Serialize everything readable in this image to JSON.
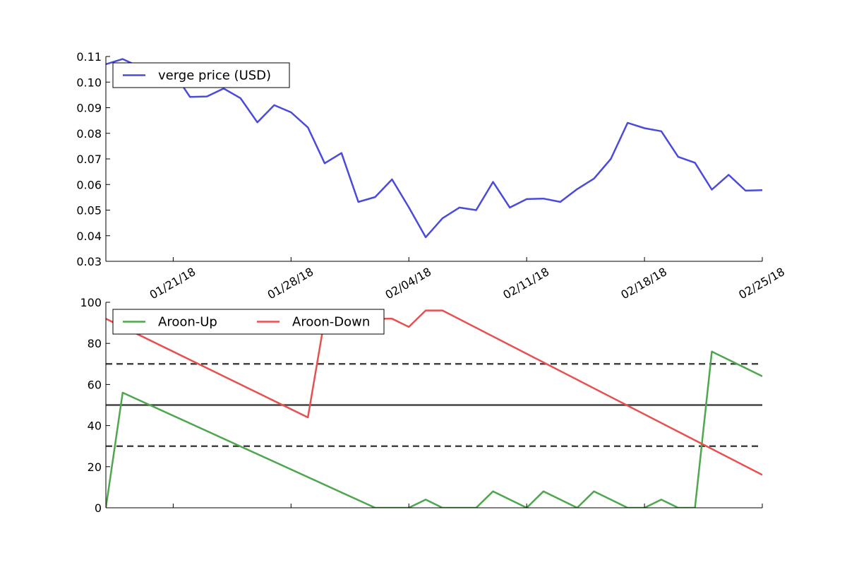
{
  "chart_data": [
    {
      "type": "line",
      "x_axis": "date",
      "x_start": "2018-01-17",
      "x_end": "2018-02-25",
      "xticks": [
        "2018-01-21",
        "2018-01-28",
        "2018-02-04",
        "2018-02-11",
        "2018-02-18",
        "2018-02-25"
      ],
      "xtick_labels": [
        "01/21/18",
        "01/28/18",
        "02/04/18",
        "02/11/18",
        "02/18/18",
        "02/25/18"
      ],
      "ylim": [
        0.03,
        0.11
      ],
      "yticks": [
        "0.03",
        "0.04",
        "0.05",
        "0.06",
        "0.07",
        "0.08",
        "0.09",
        "0.10",
        "0.11"
      ],
      "legend": "top-left",
      "series": [
        {
          "name": "verge price (USD)",
          "color": "#4a4add",
          "x": [
            "2018-01-17",
            "2018-01-18",
            "2018-01-19",
            "2018-01-20",
            "2018-01-21",
            "2018-01-22",
            "2018-01-23",
            "2018-01-24",
            "2018-01-25",
            "2018-01-26",
            "2018-01-27",
            "2018-01-28",
            "2018-01-29",
            "2018-01-30",
            "2018-01-31",
            "2018-02-01",
            "2018-02-02",
            "2018-02-03",
            "2018-02-04",
            "2018-02-05",
            "2018-02-06",
            "2018-02-07",
            "2018-02-08",
            "2018-02-09",
            "2018-02-10",
            "2018-02-11",
            "2018-02-12",
            "2018-02-13",
            "2018-02-14",
            "2018-02-15",
            "2018-02-16",
            "2018-02-17",
            "2018-02-18",
            "2018-02-19",
            "2018-02-20",
            "2018-02-21",
            "2018-02-22",
            "2018-02-23",
            "2018-02-24",
            "2018-02-25",
            "2018-02-26"
          ],
          "values": [
            0.107,
            0.109,
            0.106,
            0.105,
            0.104,
            0.0942,
            0.0944,
            0.0975,
            0.0937,
            0.0843,
            0.091,
            0.0882,
            0.0823,
            0.0683,
            0.0723,
            0.0532,
            0.0551,
            0.062,
            0.0511,
            0.0394,
            0.0468,
            0.051,
            0.05,
            0.061,
            0.051,
            0.0543,
            0.0545,
            0.0532,
            0.0582,
            0.0623,
            0.07,
            0.0841,
            0.082,
            0.0808,
            0.0708,
            0.0685,
            0.058,
            0.0638,
            0.0576,
            0.0578,
            0.0578
          ]
        }
      ]
    },
    {
      "type": "line",
      "x_axis": "date",
      "x_start": "2018-01-17",
      "x_end": "2018-02-25",
      "ylim": [
        0,
        100
      ],
      "yticks": [
        "0",
        "20",
        "40",
        "60",
        "80",
        "100"
      ],
      "legend": "top-left",
      "hlines": [
        {
          "y": 70,
          "style": "dashed",
          "color": "#444444"
        },
        {
          "y": 50,
          "style": "solid",
          "color": "#444444"
        },
        {
          "y": 30,
          "style": "dashed",
          "color": "#444444"
        }
      ],
      "series": [
        {
          "name": "Aroon-Up",
          "color": "#4ea64e",
          "x": [
            "2018-01-17",
            "2018-01-18",
            "2018-02-02",
            "2018-02-04",
            "2018-02-05",
            "2018-02-06",
            "2018-02-08",
            "2018-02-09",
            "2018-02-11",
            "2018-02-12",
            "2018-02-14",
            "2018-02-15",
            "2018-02-17",
            "2018-02-18",
            "2018-02-19",
            "2018-02-20",
            "2018-02-21",
            "2018-02-22",
            "2018-02-25"
          ],
          "values": [
            0,
            56,
            0,
            0,
            4,
            0,
            0,
            8,
            0,
            8,
            0,
            8,
            0,
            0,
            4,
            0,
            0,
            76,
            64
          ]
        },
        {
          "name": "Aroon-Down",
          "color": "#e85050",
          "x": [
            "2018-01-17",
            "2018-01-29",
            "2018-01-30",
            "2018-02-03",
            "2018-02-04",
            "2018-02-05",
            "2018-02-06",
            "2018-02-25"
          ],
          "values": [
            92,
            44,
            92,
            92,
            88,
            96,
            96,
            16
          ]
        }
      ]
    }
  ]
}
